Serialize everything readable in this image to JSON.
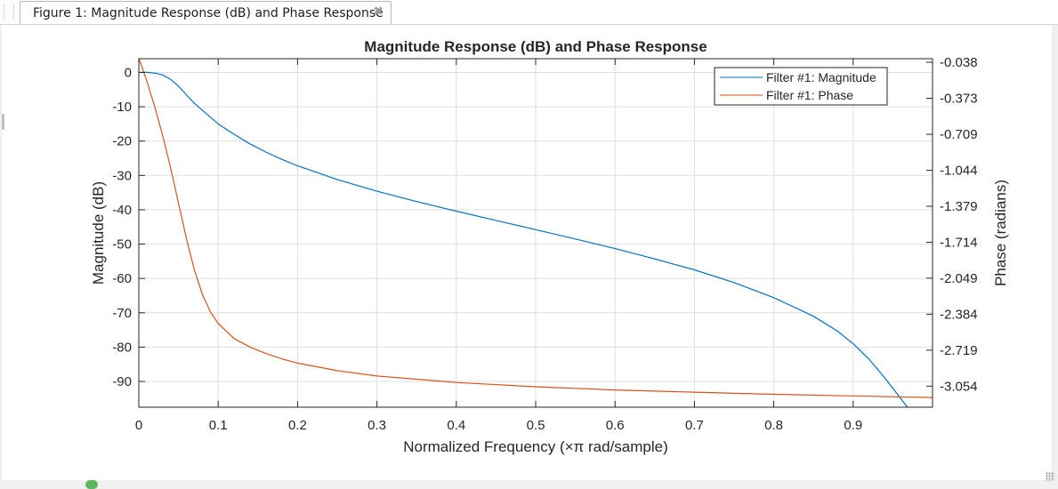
{
  "window": {
    "tab_title": "Figure 1: Magnitude Response (dB) and Phase Response",
    "close_glyph": "✖"
  },
  "chart_data": {
    "type": "line",
    "title": "Magnitude Response (dB) and Phase Response",
    "xlabel": "Normalized Frequency (×π rad/sample)",
    "ylabel_left": "Magnitude (dB)",
    "ylabel_right": "Phase (radians)",
    "xlim": [
      0,
      1
    ],
    "ylim_left": [
      -97.5,
      4
    ],
    "ylim_right": [
      -3.2503,
      -0.0046
    ],
    "x_ticks": [
      "0",
      "0.1",
      "0.2",
      "0.3",
      "0.4",
      "0.5",
      "0.6",
      "0.7",
      "0.8",
      "0.9"
    ],
    "left_ticks": [
      "0",
      "-10",
      "-20",
      "-30",
      "-40",
      "-50",
      "-60",
      "-70",
      "-80",
      "-90"
    ],
    "right_ticks": [
      "-0.038",
      "-0.373",
      "-0.709",
      "-1.044",
      "-1.379",
      "-1.714",
      "-2.049",
      "-2.384",
      "-2.719",
      "-3.054"
    ],
    "grid": true,
    "legend_position": "top-right",
    "series": [
      {
        "name": "Filter #1: Magnitude",
        "axis": "left",
        "color": "#0072bd",
        "x": [
          0,
          0.01,
          0.02,
          0.03,
          0.04,
          0.05,
          0.06,
          0.07,
          0.08,
          0.09,
          0.1,
          0.12,
          0.14,
          0.16,
          0.18,
          0.2,
          0.25,
          0.3,
          0.35,
          0.4,
          0.45,
          0.5,
          0.55,
          0.6,
          0.65,
          0.7,
          0.75,
          0.8,
          0.85,
          0.88,
          0.9,
          0.92,
          0.94,
          0.95,
          0.96,
          0.965,
          0.97
        ],
        "y": [
          0,
          0,
          -0.2,
          -0.7,
          -2.0,
          -4.0,
          -6.5,
          -9.0,
          -11.0,
          -13.0,
          -15.0,
          -18.0,
          -20.8,
          -23.2,
          -25.3,
          -27.2,
          -31.2,
          -34.6,
          -37.6,
          -40.4,
          -43.1,
          -45.8,
          -48.5,
          -51.3,
          -54.3,
          -57.5,
          -61.2,
          -65.6,
          -71.0,
          -75.3,
          -79.0,
          -83.5,
          -89.0,
          -92.0,
          -95.0,
          -96.5,
          -98.0
        ]
      },
      {
        "name": "Filter #1: Phase",
        "axis": "right",
        "color": "#d95319",
        "x": [
          0,
          0.01,
          0.02,
          0.03,
          0.04,
          0.05,
          0.06,
          0.07,
          0.08,
          0.09,
          0.1,
          0.12,
          0.14,
          0.16,
          0.18,
          0.2,
          0.25,
          0.3,
          0.4,
          0.5,
          0.6,
          0.7,
          0.8,
          0.9,
          1.0
        ],
        "y": [
          0,
          -0.21,
          -0.45,
          -0.72,
          -1.02,
          -1.35,
          -1.68,
          -1.97,
          -2.2,
          -2.36,
          -2.47,
          -2.61,
          -2.69,
          -2.75,
          -2.8,
          -2.84,
          -2.91,
          -2.96,
          -3.02,
          -3.06,
          -3.09,
          -3.11,
          -3.13,
          -3.145,
          -3.16
        ]
      }
    ]
  }
}
